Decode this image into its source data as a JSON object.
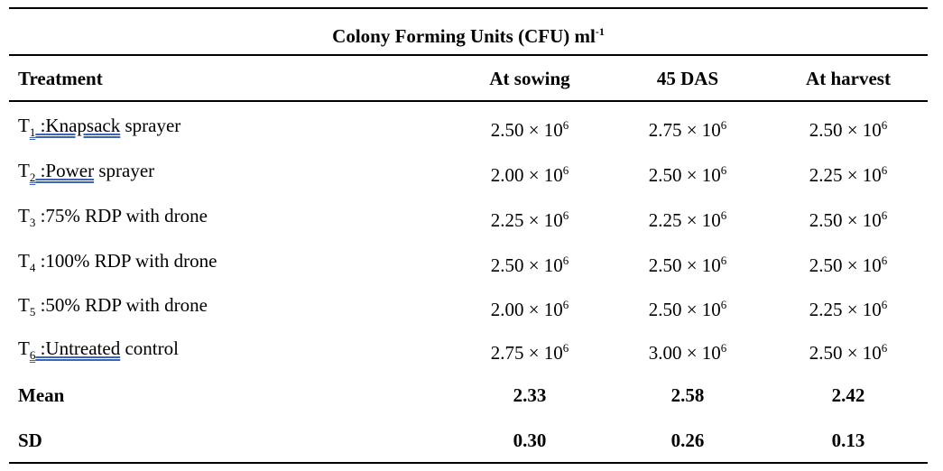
{
  "title": {
    "text": "Colony Forming Units (CFU) ml",
    "sup": "-1"
  },
  "headers": [
    "Treatment",
    "At sowing",
    "45 DAS",
    "At harvest"
  ],
  "rows": [
    {
      "t": "T",
      "sub": "1",
      "sep": " :",
      "name_ul": "Knapsack",
      "name_rest": " sprayer",
      "v1": "2.50 × 10",
      "v1e": "6",
      "v2": "2.75  × 10",
      "v2e": "6",
      "v3": "2.50  × 10",
      "v3e": "6"
    },
    {
      "t": "T",
      "sub": "2",
      "sep": " :",
      "name_ul": "Power",
      "name_rest": " sprayer",
      "v1": "2.00 × 10",
      "v1e": "6",
      "v2": "2.50  × 10",
      "v2e": "6",
      "v3": "2.25  × 10",
      "v3e": "6"
    },
    {
      "t": "T",
      "sub": "3",
      "sep": " :",
      "name_ul": "",
      "name_rest": "75% RDP with drone",
      "v1": "2.25 × 10",
      "v1e": "6",
      "v2": "2.25  × 10",
      "v2e": "6",
      "v3": "2.50  × 10",
      "v3e": "6"
    },
    {
      "t": "T",
      "sub": "4",
      "sep": " :",
      "name_ul": "",
      "name_rest": "100% RDP with drone",
      "v1": "2.50 × 10",
      "v1e": "6",
      "v2": "2.50  × 10",
      "v2e": "6",
      "v3": "2.50 × 10",
      "v3e": "6"
    },
    {
      "t": "T",
      "sub": "5",
      "sep": " :",
      "name_ul": "",
      "name_rest": "50%  RDP with drone",
      "v1": "2.00 × 10",
      "v1e": "6",
      "v2": "2.50  × 10",
      "v2e": "6",
      "v3": "2.25 × 10",
      "v3e": "6"
    },
    {
      "t": "T",
      "sub": "6",
      "sep": " :",
      "name_ul": "Untreated",
      "name_rest": " control",
      "v1": "2.75 × 10",
      "v1e": "6",
      "v2": "3.00  × 10",
      "v2e": "6",
      "v3": "2.50 × 10",
      "v3e": "6"
    }
  ],
  "summary": [
    {
      "label": "Mean",
      "v1": "2.33",
      "v2": "2.58",
      "v3": "2.42"
    },
    {
      "label": "SD",
      "v1": "0.30",
      "v2": "0.26",
      "v3": "0.13"
    }
  ]
}
